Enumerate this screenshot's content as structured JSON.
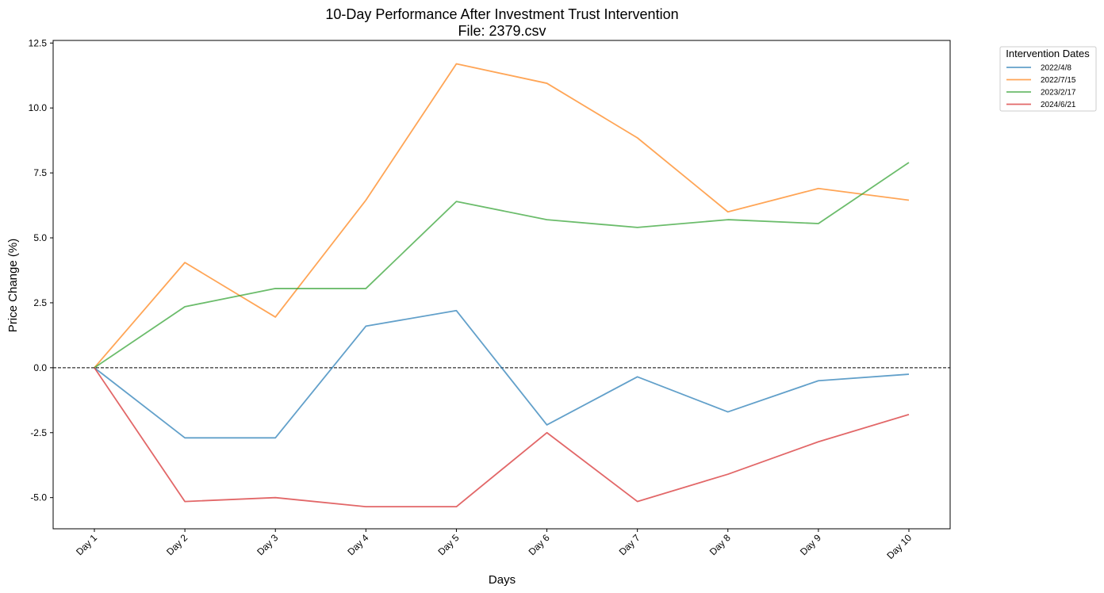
{
  "chart_data": {
    "type": "line",
    "title": "10-Day Performance After Investment Trust Intervention",
    "subtitle": "File: 2379.csv",
    "xlabel": "Days",
    "ylabel": "Price Change (%)",
    "categories": [
      "Day 1",
      "Day 2",
      "Day 3",
      "Day 4",
      "Day 5",
      "Day 6",
      "Day 7",
      "Day 8",
      "Day 9",
      "Day 10"
    ],
    "ylim": [
      -6.2,
      12.6
    ],
    "yticks": [
      -5.0,
      -2.5,
      0.0,
      2.5,
      5.0,
      7.5,
      10.0,
      12.5
    ],
    "ytick_labels": [
      "-5.0",
      "-2.5",
      "0.0",
      "2.5",
      "5.0",
      "7.5",
      "10.0",
      "12.5"
    ],
    "zero_line": true,
    "grid": false,
    "legend": {
      "title": "Intervention Dates",
      "placement": "outside top-right"
    },
    "series": [
      {
        "name": "2022/4/8",
        "color": "#1f77b4",
        "values": [
          0.0,
          -2.7,
          -2.7,
          1.6,
          2.2,
          -2.2,
          -0.35,
          -1.7,
          -0.5,
          -0.25
        ]
      },
      {
        "name": "2022/7/15",
        "color": "#ff7f0e",
        "values": [
          0.0,
          4.05,
          1.95,
          6.45,
          11.7,
          10.95,
          8.85,
          6.0,
          6.9,
          6.45
        ]
      },
      {
        "name": "2023/2/17",
        "color": "#2ca02c",
        "values": [
          0.0,
          2.35,
          3.05,
          3.05,
          6.4,
          5.7,
          5.4,
          5.7,
          5.55,
          7.9
        ]
      },
      {
        "name": "2024/6/21",
        "color": "#d62728",
        "values": [
          0.0,
          -5.15,
          -5.0,
          -5.35,
          -5.35,
          -2.5,
          -5.15,
          -4.1,
          -2.85,
          -1.8
        ]
      }
    ]
  }
}
